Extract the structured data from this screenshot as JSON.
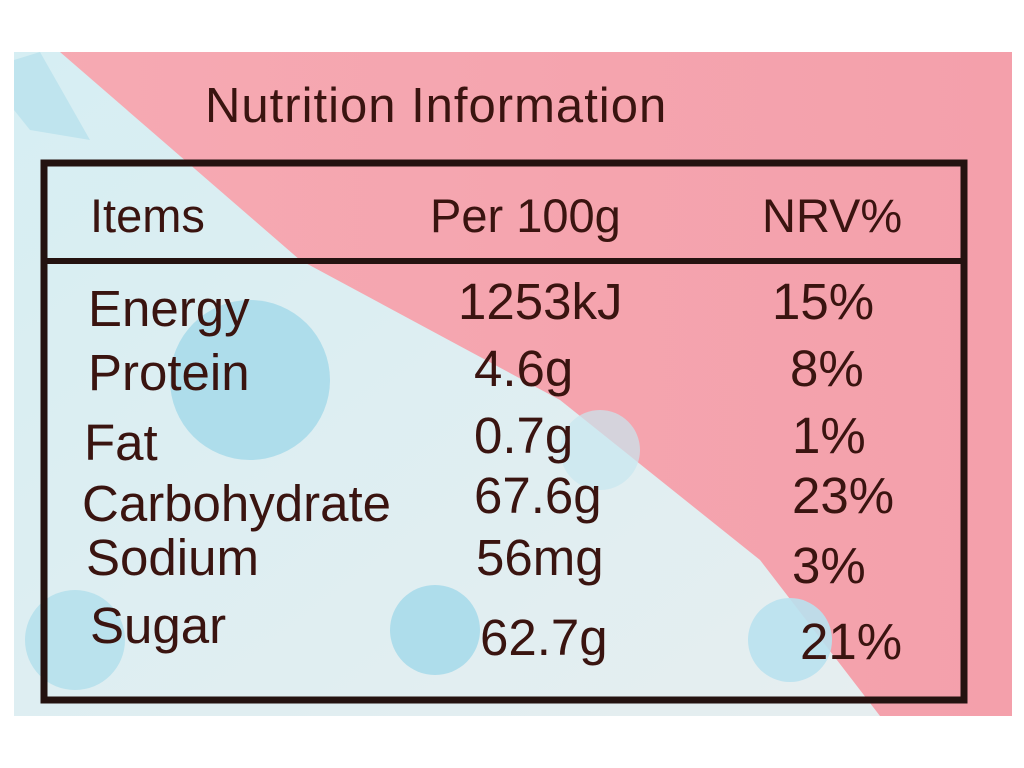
{
  "title": "Nutrition Information",
  "table": {
    "headers": [
      "Items",
      "Per 100g",
      "NRV%"
    ],
    "rows": [
      {
        "item": "Energy",
        "per_100g": "1253kJ",
        "nrv": "15%"
      },
      {
        "item": "Protein",
        "per_100g": "4.6g",
        "nrv": "8%"
      },
      {
        "item": "Fat",
        "per_100g": "0.7g",
        "nrv": "1%"
      },
      {
        "item": "Carbohydrate",
        "per_100g": "67.6g",
        "nrv": "23%"
      },
      {
        "item": "Sodium",
        "per_100g": "56mg",
        "nrv": "3%"
      },
      {
        "item": "Sugar",
        "per_100g": "62.7g",
        "nrv": "21%"
      }
    ]
  },
  "colors": {
    "pink": "#f3a3ad",
    "light_blue": "#cfe9ef",
    "dot_blue": "#9fd3e6",
    "ink": "#3a1410"
  }
}
